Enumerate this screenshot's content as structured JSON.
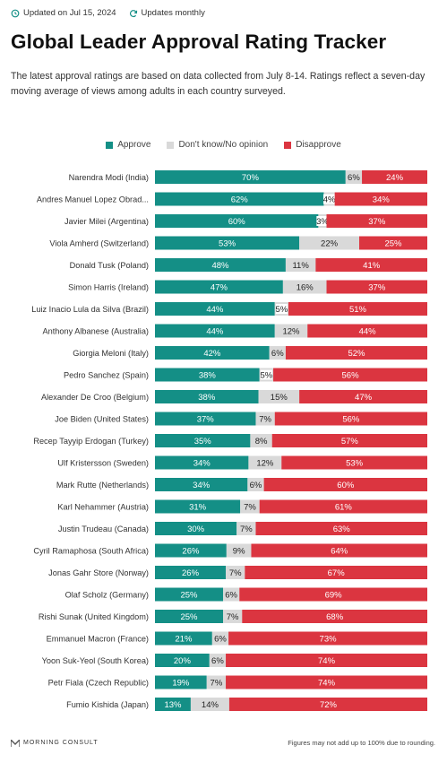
{
  "header": {
    "updated": "Updated on Jul 15, 2024",
    "frequency": "Updates monthly"
  },
  "colors": {
    "approve": "#148f86",
    "neutral": "#d9d9d9",
    "disapprove": "#db3540"
  },
  "chart_data": {
    "type": "bar",
    "orientation": "horizontal",
    "stacked": true,
    "title": "Global Leader Approval Rating Tracker",
    "subtitle": "The latest approval ratings are based on data collected from July 8-14. Ratings reflect a seven-day moving average of views among adults in each country surveyed.",
    "legend_position": "top-center",
    "categories": [
      "Narendra Modi (India)",
      "Andres Manuel Lopez Obrad...",
      "Javier Milei (Argentina)",
      "Viola Amherd (Switzerland)",
      "Donald Tusk (Poland)",
      "Simon Harris (Ireland)",
      "Luiz Inacio Lula da Silva (Brazil)",
      "Anthony Albanese (Australia)",
      "Giorgia Meloni (Italy)",
      "Pedro Sanchez (Spain)",
      "Alexander De Croo (Belgium)",
      "Joe Biden (United States)",
      "Recep Tayyip Erdogan (Turkey)",
      "Ulf Kristersson (Sweden)",
      "Mark Rutte (Netherlands)",
      "Karl Nehammer (Austria)",
      "Justin Trudeau (Canada)",
      "Cyril Ramaphosa (South Africa)",
      "Jonas Gahr Store (Norway)",
      "Olaf Scholz (Germany)",
      "Rishi Sunak (United Kingdom)",
      "Emmanuel Macron (France)",
      "Yoon Suk-Yeol (South Korea)",
      "Petr Fiala (Czech Republic)",
      "Fumio Kishida (Japan)"
    ],
    "series": [
      {
        "name": "Approve",
        "values": [
          70,
          62,
          60,
          53,
          48,
          47,
          44,
          44,
          42,
          38,
          38,
          37,
          35,
          34,
          34,
          31,
          30,
          26,
          26,
          25,
          25,
          21,
          20,
          19,
          13
        ]
      },
      {
        "name": "Don't know/No opinion",
        "values": [
          6,
          4,
          3,
          22,
          11,
          16,
          5,
          12,
          6,
          5,
          15,
          7,
          8,
          12,
          6,
          7,
          7,
          9,
          7,
          6,
          7,
          6,
          6,
          7,
          14
        ]
      },
      {
        "name": "Disapprove",
        "values": [
          24,
          34,
          37,
          25,
          41,
          37,
          51,
          44,
          52,
          56,
          47,
          56,
          57,
          53,
          60,
          61,
          63,
          64,
          67,
          69,
          68,
          73,
          74,
          74,
          72
        ]
      }
    ],
    "value_suffix": "%",
    "xlim": [
      0,
      100
    ]
  },
  "footer": {
    "brand": "MORNING CONSULT",
    "note": "Figures may not add up to 100% due to rounding."
  }
}
